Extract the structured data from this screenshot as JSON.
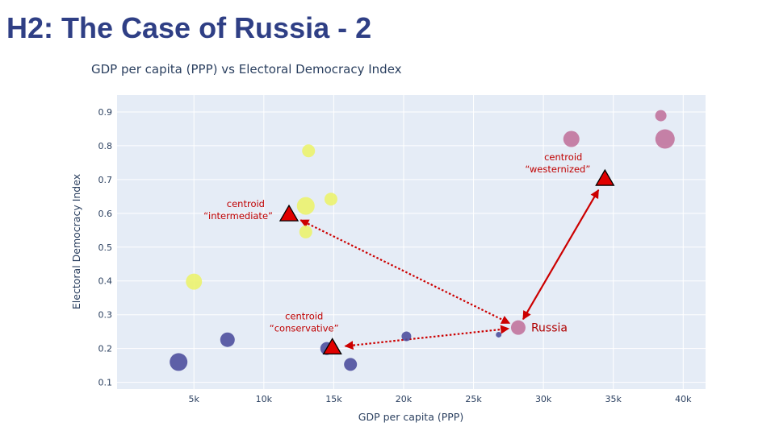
{
  "slide": {
    "title": "H2: The Case of Russia - 2"
  },
  "chart_data": {
    "type": "scatter",
    "title": "GDP per capita (PPP) vs Electoral Democracy Index",
    "xlabel": "GDP per capita (PPP)",
    "ylabel": "Electoral Democracy Index",
    "xlim": [
      -500,
      41600
    ],
    "ylim": [
      0.08,
      0.95
    ],
    "x_ticks": [
      5000,
      10000,
      15000,
      20000,
      25000,
      30000,
      35000,
      40000
    ],
    "x_tick_labels": [
      "5k",
      "10k",
      "15k",
      "20k",
      "25k",
      "30k",
      "35k",
      "40k"
    ],
    "y_ticks": [
      0.1,
      0.2,
      0.3,
      0.4,
      0.5,
      0.6,
      0.7,
      0.8,
      0.9
    ],
    "y_tick_labels": [
      "0.1",
      "0.2",
      "0.3",
      "0.4",
      "0.5",
      "0.6",
      "0.7",
      "0.8",
      "0.9"
    ],
    "grid": true,
    "colors": {
      "conservative": "#4a4b9c",
      "intermediate": "#ecf26a",
      "westernized": "#c0719b",
      "centroid": "#e00000",
      "arrow": "#cc0000",
      "plot_bg": "#e5ecf6"
    },
    "series": [
      {
        "cluster": "conservative",
        "points": [
          {
            "x": 3900,
            "y": 0.16,
            "size": 11
          },
          {
            "x": 7400,
            "y": 0.226,
            "size": 9
          },
          {
            "x": 14500,
            "y": 0.2,
            "size": 8
          },
          {
            "x": 16200,
            "y": 0.153,
            "size": 8
          },
          {
            "x": 20200,
            "y": 0.236,
            "size": 6
          },
          {
            "x": 26800,
            "y": 0.241,
            "size": 3.5
          }
        ]
      },
      {
        "cluster": "intermediate",
        "points": [
          {
            "x": 5000,
            "y": 0.398,
            "size": 10
          },
          {
            "x": 13200,
            "y": 0.785,
            "size": 8
          },
          {
            "x": 13000,
            "y": 0.622,
            "size": 11
          },
          {
            "x": 13000,
            "y": 0.545,
            "size": 8
          },
          {
            "x": 14800,
            "y": 0.642,
            "size": 8
          }
        ]
      },
      {
        "cluster": "westernized",
        "points": [
          {
            "x": 32000,
            "y": 0.82,
            "size": 10
          },
          {
            "x": 38400,
            "y": 0.889,
            "size": 7
          },
          {
            "x": 38700,
            "y": 0.82,
            "size": 12
          },
          {
            "x": 28200,
            "y": 0.262,
            "size": 9
          }
        ]
      }
    ],
    "centroids": [
      {
        "name": "intermediate",
        "x": 11800,
        "y": 0.597,
        "label_lines": [
          "centroid",
          "“intermediate”"
        ]
      },
      {
        "name": "conservative",
        "x": 14900,
        "y": 0.203,
        "label_lines": [
          "centroid",
          "“conservative”"
        ]
      },
      {
        "name": "westernized",
        "x": 34400,
        "y": 0.702,
        "label_lines": [
          "centroid",
          "“westernized”"
        ]
      }
    ],
    "russia": {
      "x": 28200,
      "y": 0.262,
      "label": "Russia"
    }
  }
}
